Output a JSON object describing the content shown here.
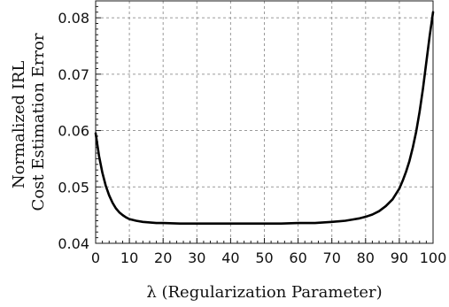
{
  "chart_data": {
    "type": "line",
    "title": "",
    "xlabel": "λ (Regularization Parameter)",
    "ylabel_lines": [
      "Normalized IRL",
      "Cost Estimation Error"
    ],
    "xlim": [
      0,
      100
    ],
    "ylim": [
      0.04,
      0.083
    ],
    "x_ticks": [
      0,
      10,
      20,
      30,
      40,
      50,
      60,
      70,
      80,
      90,
      100
    ],
    "x_tick_labels": [
      "0",
      "10",
      "20",
      "30",
      "40",
      "50",
      "60",
      "70",
      "80",
      "90",
      "100"
    ],
    "y_ticks": [
      0.04,
      0.05,
      0.06,
      0.07,
      0.08
    ],
    "y_tick_labels": [
      "0.04",
      "0.05",
      "0.06",
      "0.07",
      "0.08"
    ],
    "grid": true,
    "series": [
      {
        "color": "#000000",
        "x": [
          0,
          1,
          2,
          3,
          4,
          5,
          6,
          7,
          8,
          9,
          10,
          12,
          14,
          16,
          18,
          20,
          25,
          30,
          35,
          40,
          45,
          50,
          55,
          60,
          65,
          70,
          72,
          74,
          76,
          78,
          80,
          82,
          84,
          86,
          88,
          90,
          91,
          92,
          93,
          94,
          95,
          96,
          97,
          98,
          99,
          100
        ],
        "y": [
          0.0595,
          0.0555,
          0.0525,
          0.0502,
          0.0485,
          0.0472,
          0.0462,
          0.0455,
          0.045,
          0.0446,
          0.0443,
          0.044,
          0.0438,
          0.0437,
          0.0436,
          0.0436,
          0.0435,
          0.0435,
          0.0435,
          0.0435,
          0.0435,
          0.0435,
          0.0435,
          0.0436,
          0.0436,
          0.0438,
          0.0439,
          0.044,
          0.0442,
          0.0444,
          0.0447,
          0.0451,
          0.0457,
          0.0466,
          0.0478,
          0.0497,
          0.0511,
          0.0527,
          0.0546,
          0.057,
          0.0598,
          0.0633,
          0.0674,
          0.0721,
          0.0768,
          0.081
        ]
      }
    ]
  }
}
